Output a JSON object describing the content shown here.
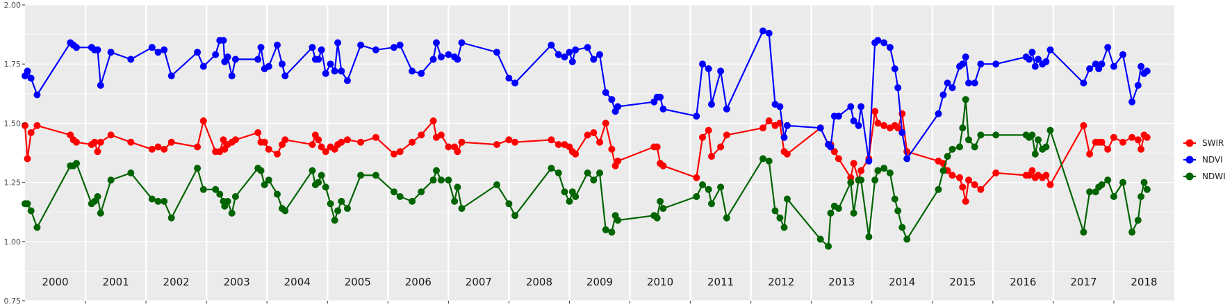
{
  "chart_data": {
    "type": "line",
    "title": "",
    "xlabel": "",
    "ylabel": "",
    "ylim": [
      0.75,
      2.0
    ],
    "yticks": [
      "0.75",
      "1.00",
      "1.25",
      "1.50",
      "1.75",
      "2.00"
    ],
    "xlim": [
      2000.0,
      2019.0
    ],
    "grid": true,
    "legend_position": "right",
    "colors": {
      "panel": "#ebebeb",
      "grid": "#ffffff"
    },
    "years": [
      "2000",
      "2001",
      "2002",
      "2003",
      "2004",
      "2005",
      "2006",
      "2007",
      "2008",
      "2009",
      "2010",
      "2011",
      "2012",
      "2013",
      "2014",
      "2015",
      "2016",
      "2017",
      "2018"
    ],
    "series": [
      {
        "name": "SWIR",
        "color": "#ff0000",
        "x": [
          2000.0,
          2000.04,
          2000.1,
          2000.2,
          2000.75,
          2000.8,
          2000.85,
          2001.1,
          2001.15,
          2001.2,
          2001.25,
          2001.42,
          2001.75,
          2002.1,
          2002.2,
          2002.3,
          2002.42,
          2002.85,
          2002.95,
          2003.15,
          2003.22,
          2003.28,
          2003.3,
          2003.35,
          2003.42,
          2003.48,
          2003.85,
          2003.9,
          2003.96,
          2004.03,
          2004.17,
          2004.25,
          2004.3,
          2004.75,
          2004.8,
          2004.85,
          2004.9,
          2004.97,
          2005.05,
          2005.12,
          2005.17,
          2005.23,
          2005.33,
          2005.55,
          2005.8,
          2006.1,
          2006.2,
          2006.4,
          2006.55,
          2006.75,
          2006.8,
          2006.88,
          2007.0,
          2007.1,
          2007.15,
          2007.22,
          2007.8,
          2008.0,
          2008.1,
          2008.7,
          2008.82,
          2008.92,
          2009.0,
          2009.05,
          2009.1,
          2009.3,
          2009.4,
          2009.5,
          2009.6,
          2009.7,
          2009.76,
          2009.8,
          2010.4,
          2010.45,
          2010.5,
          2010.55,
          2011.1,
          2011.2,
          2011.3,
          2011.35,
          2011.5,
          2011.6,
          2012.2,
          2012.3,
          2012.4,
          2012.48,
          2012.55,
          2012.6,
          2013.15,
          2013.28,
          2013.32,
          2013.38,
          2013.45,
          2013.65,
          2013.7,
          2013.78,
          2013.82,
          2013.95,
          2014.05,
          2014.1,
          2014.2,
          2014.3,
          2014.38,
          2014.43,
          2014.5,
          2014.58,
          2015.1,
          2015.18,
          2015.25,
          2015.33,
          2015.45,
          2015.5,
          2015.55,
          2015.6,
          2015.7,
          2015.8,
          2016.05,
          2016.55,
          2016.6,
          2016.65,
          2016.7,
          2016.75,
          2016.82,
          2016.88,
          2016.95,
          2017.5,
          2017.6,
          2017.7,
          2017.75,
          2017.8,
          2017.9,
          2018.0,
          2018.15,
          2018.3,
          2018.4,
          2018.45,
          2018.5,
          2018.55
        ],
        "y": [
          1.49,
          1.35,
          1.46,
          1.49,
          1.45,
          1.43,
          1.42,
          1.41,
          1.42,
          1.38,
          1.42,
          1.45,
          1.42,
          1.39,
          1.4,
          1.39,
          1.42,
          1.4,
          1.51,
          1.38,
          1.38,
          1.43,
          1.39,
          1.41,
          1.42,
          1.43,
          1.46,
          1.42,
          1.42,
          1.39,
          1.37,
          1.41,
          1.43,
          1.41,
          1.45,
          1.43,
          1.4,
          1.38,
          1.4,
          1.39,
          1.41,
          1.42,
          1.43,
          1.42,
          1.44,
          1.37,
          1.38,
          1.42,
          1.45,
          1.51,
          1.44,
          1.45,
          1.4,
          1.4,
          1.38,
          1.42,
          1.41,
          1.43,
          1.42,
          1.43,
          1.41,
          1.41,
          1.4,
          1.38,
          1.37,
          1.45,
          1.46,
          1.42,
          1.5,
          1.39,
          1.32,
          1.34,
          1.4,
          1.4,
          1.33,
          1.32,
          1.27,
          1.44,
          1.47,
          1.36,
          1.4,
          1.45,
          1.48,
          1.51,
          1.49,
          1.5,
          1.38,
          1.37,
          1.48,
          1.41,
          1.41,
          1.38,
          1.35,
          1.27,
          1.33,
          1.26,
          1.3,
          1.35,
          1.55,
          1.5,
          1.49,
          1.48,
          1.49,
          1.48,
          1.54,
          1.38,
          1.34,
          1.33,
          1.3,
          1.28,
          1.27,
          1.23,
          1.17,
          1.26,
          1.24,
          1.22,
          1.29,
          1.28,
          1.28,
          1.3,
          1.27,
          1.28,
          1.27,
          1.28,
          1.24,
          1.49,
          1.37,
          1.42,
          1.42,
          1.42,
          1.39,
          1.44,
          1.42,
          1.44,
          1.43,
          1.39,
          1.45,
          1.44
        ]
      },
      {
        "name": "NDVI",
        "color": "#0000ff",
        "x": [
          2000.0,
          2000.04,
          2000.1,
          2000.2,
          2000.75,
          2000.8,
          2000.85,
          2001.1,
          2001.15,
          2001.2,
          2001.25,
          2001.42,
          2001.75,
          2002.1,
          2002.2,
          2002.3,
          2002.42,
          2002.85,
          2002.95,
          2003.15,
          2003.22,
          2003.28,
          2003.3,
          2003.35,
          2003.42,
          2003.48,
          2003.85,
          2003.9,
          2003.96,
          2004.03,
          2004.17,
          2004.25,
          2004.3,
          2004.75,
          2004.8,
          2004.85,
          2004.9,
          2004.97,
          2005.05,
          2005.12,
          2005.17,
          2005.23,
          2005.33,
          2005.55,
          2005.8,
          2006.1,
          2006.2,
          2006.4,
          2006.55,
          2006.75,
          2006.8,
          2006.88,
          2007.0,
          2007.1,
          2007.15,
          2007.22,
          2007.8,
          2008.0,
          2008.1,
          2008.7,
          2008.82,
          2008.92,
          2009.0,
          2009.05,
          2009.1,
          2009.3,
          2009.4,
          2009.5,
          2009.6,
          2009.7,
          2009.76,
          2009.8,
          2010.4,
          2010.45,
          2010.5,
          2010.55,
          2011.1,
          2011.2,
          2011.3,
          2011.35,
          2011.5,
          2011.6,
          2012.2,
          2012.3,
          2012.4,
          2012.48,
          2012.55,
          2012.6,
          2013.15,
          2013.28,
          2013.32,
          2013.38,
          2013.45,
          2013.65,
          2013.7,
          2013.78,
          2013.82,
          2013.95,
          2014.05,
          2014.1,
          2014.2,
          2014.3,
          2014.38,
          2014.43,
          2014.5,
          2014.58,
          2015.1,
          2015.18,
          2015.25,
          2015.33,
          2015.45,
          2015.5,
          2015.55,
          2015.6,
          2015.7,
          2015.8,
          2016.05,
          2016.55,
          2016.6,
          2016.65,
          2016.7,
          2016.75,
          2016.82,
          2016.88,
          2016.95,
          2017.5,
          2017.6,
          2017.7,
          2017.75,
          2017.8,
          2017.9,
          2018.0,
          2018.15,
          2018.3,
          2018.4,
          2018.45,
          2018.5,
          2018.55
        ],
        "y": [
          1.7,
          1.72,
          1.69,
          1.62,
          1.84,
          1.83,
          1.82,
          1.82,
          1.81,
          1.81,
          1.66,
          1.8,
          1.77,
          1.82,
          1.8,
          1.81,
          1.7,
          1.8,
          1.74,
          1.79,
          1.85,
          1.85,
          1.76,
          1.78,
          1.7,
          1.77,
          1.77,
          1.82,
          1.73,
          1.74,
          1.83,
          1.75,
          1.7,
          1.82,
          1.77,
          1.77,
          1.81,
          1.71,
          1.75,
          1.72,
          1.84,
          1.72,
          1.68,
          1.83,
          1.81,
          1.82,
          1.83,
          1.72,
          1.71,
          1.77,
          1.84,
          1.78,
          1.79,
          1.78,
          1.77,
          1.84,
          1.8,
          1.69,
          1.67,
          1.83,
          1.79,
          1.78,
          1.8,
          1.76,
          1.81,
          1.82,
          1.77,
          1.79,
          1.63,
          1.6,
          1.55,
          1.57,
          1.59,
          1.61,
          1.61,
          1.56,
          1.53,
          1.75,
          1.73,
          1.58,
          1.72,
          1.56,
          1.89,
          1.88,
          1.58,
          1.57,
          1.44,
          1.49,
          1.48,
          1.41,
          1.4,
          1.53,
          1.53,
          1.57,
          1.51,
          1.49,
          1.57,
          1.34,
          1.84,
          1.85,
          1.84,
          1.82,
          1.73,
          1.65,
          1.46,
          1.35,
          1.54,
          1.62,
          1.67,
          1.65,
          1.74,
          1.75,
          1.78,
          1.67,
          1.67,
          1.75,
          1.75,
          1.78,
          1.77,
          1.8,
          1.74,
          1.77,
          1.75,
          1.76,
          1.81,
          1.67,
          1.73,
          1.75,
          1.73,
          1.75,
          1.82,
          1.74,
          1.79,
          1.59,
          1.66,
          1.74,
          1.71,
          1.72
        ]
      },
      {
        "name": "NDWI",
        "color": "#006400",
        "x": [
          2000.0,
          2000.04,
          2000.1,
          2000.2,
          2000.75,
          2000.8,
          2000.85,
          2001.1,
          2001.15,
          2001.2,
          2001.25,
          2001.42,
          2001.75,
          2002.1,
          2002.2,
          2002.3,
          2002.42,
          2002.85,
          2002.95,
          2003.15,
          2003.22,
          2003.28,
          2003.3,
          2003.35,
          2003.42,
          2003.48,
          2003.85,
          2003.9,
          2003.96,
          2004.03,
          2004.17,
          2004.25,
          2004.3,
          2004.75,
          2004.8,
          2004.85,
          2004.9,
          2004.97,
          2005.05,
          2005.12,
          2005.17,
          2005.23,
          2005.33,
          2005.55,
          2005.8,
          2006.1,
          2006.2,
          2006.4,
          2006.55,
          2006.75,
          2006.8,
          2006.88,
          2007.0,
          2007.1,
          2007.15,
          2007.22,
          2007.8,
          2008.0,
          2008.1,
          2008.7,
          2008.82,
          2008.92,
          2009.0,
          2009.05,
          2009.1,
          2009.3,
          2009.4,
          2009.5,
          2009.6,
          2009.7,
          2009.76,
          2009.8,
          2010.4,
          2010.45,
          2010.5,
          2010.55,
          2011.1,
          2011.2,
          2011.3,
          2011.35,
          2011.5,
          2011.6,
          2012.2,
          2012.3,
          2012.4,
          2012.48,
          2012.55,
          2012.6,
          2013.15,
          2013.28,
          2013.32,
          2013.38,
          2013.45,
          2013.65,
          2013.7,
          2013.78,
          2013.82,
          2013.95,
          2014.05,
          2014.1,
          2014.2,
          2014.3,
          2014.38,
          2014.43,
          2014.5,
          2014.58,
          2015.1,
          2015.18,
          2015.25,
          2015.33,
          2015.45,
          2015.5,
          2015.55,
          2015.6,
          2015.7,
          2015.8,
          2016.05,
          2016.55,
          2016.6,
          2016.65,
          2016.7,
          2016.75,
          2016.82,
          2016.88,
          2016.95,
          2017.5,
          2017.6,
          2017.7,
          2017.75,
          2017.8,
          2017.9,
          2018.0,
          2018.15,
          2018.3,
          2018.4,
          2018.45,
          2018.5,
          2018.55
        ],
        "y": [
          1.16,
          1.16,
          1.13,
          1.06,
          1.32,
          1.32,
          1.33,
          1.16,
          1.17,
          1.19,
          1.12,
          1.26,
          1.29,
          1.18,
          1.17,
          1.17,
          1.1,
          1.31,
          1.22,
          1.22,
          1.2,
          1.17,
          1.15,
          1.17,
          1.12,
          1.19,
          1.31,
          1.3,
          1.24,
          1.26,
          1.2,
          1.14,
          1.13,
          1.3,
          1.24,
          1.25,
          1.28,
          1.23,
          1.16,
          1.09,
          1.13,
          1.17,
          1.14,
          1.28,
          1.28,
          1.21,
          1.19,
          1.17,
          1.21,
          1.26,
          1.3,
          1.26,
          1.26,
          1.17,
          1.23,
          1.14,
          1.24,
          1.16,
          1.11,
          1.31,
          1.29,
          1.21,
          1.17,
          1.21,
          1.19,
          1.29,
          1.26,
          1.29,
          1.05,
          1.04,
          1.11,
          1.09,
          1.11,
          1.1,
          1.17,
          1.14,
          1.19,
          1.24,
          1.22,
          1.16,
          1.23,
          1.1,
          1.35,
          1.34,
          1.13,
          1.1,
          1.06,
          1.18,
          1.01,
          0.98,
          1.12,
          1.15,
          1.14,
          1.25,
          1.12,
          1.26,
          1.26,
          1.02,
          1.26,
          1.3,
          1.31,
          1.29,
          1.18,
          1.13,
          1.06,
          1.01,
          1.22,
          1.3,
          1.36,
          1.39,
          1.4,
          1.48,
          1.6,
          1.43,
          1.4,
          1.45,
          1.45,
          1.45,
          1.44,
          1.45,
          1.37,
          1.43,
          1.39,
          1.4,
          1.47,
          1.04,
          1.21,
          1.21,
          1.23,
          1.24,
          1.26,
          1.19,
          1.25,
          1.04,
          1.09,
          1.19,
          1.25,
          1.22
        ]
      }
    ]
  }
}
